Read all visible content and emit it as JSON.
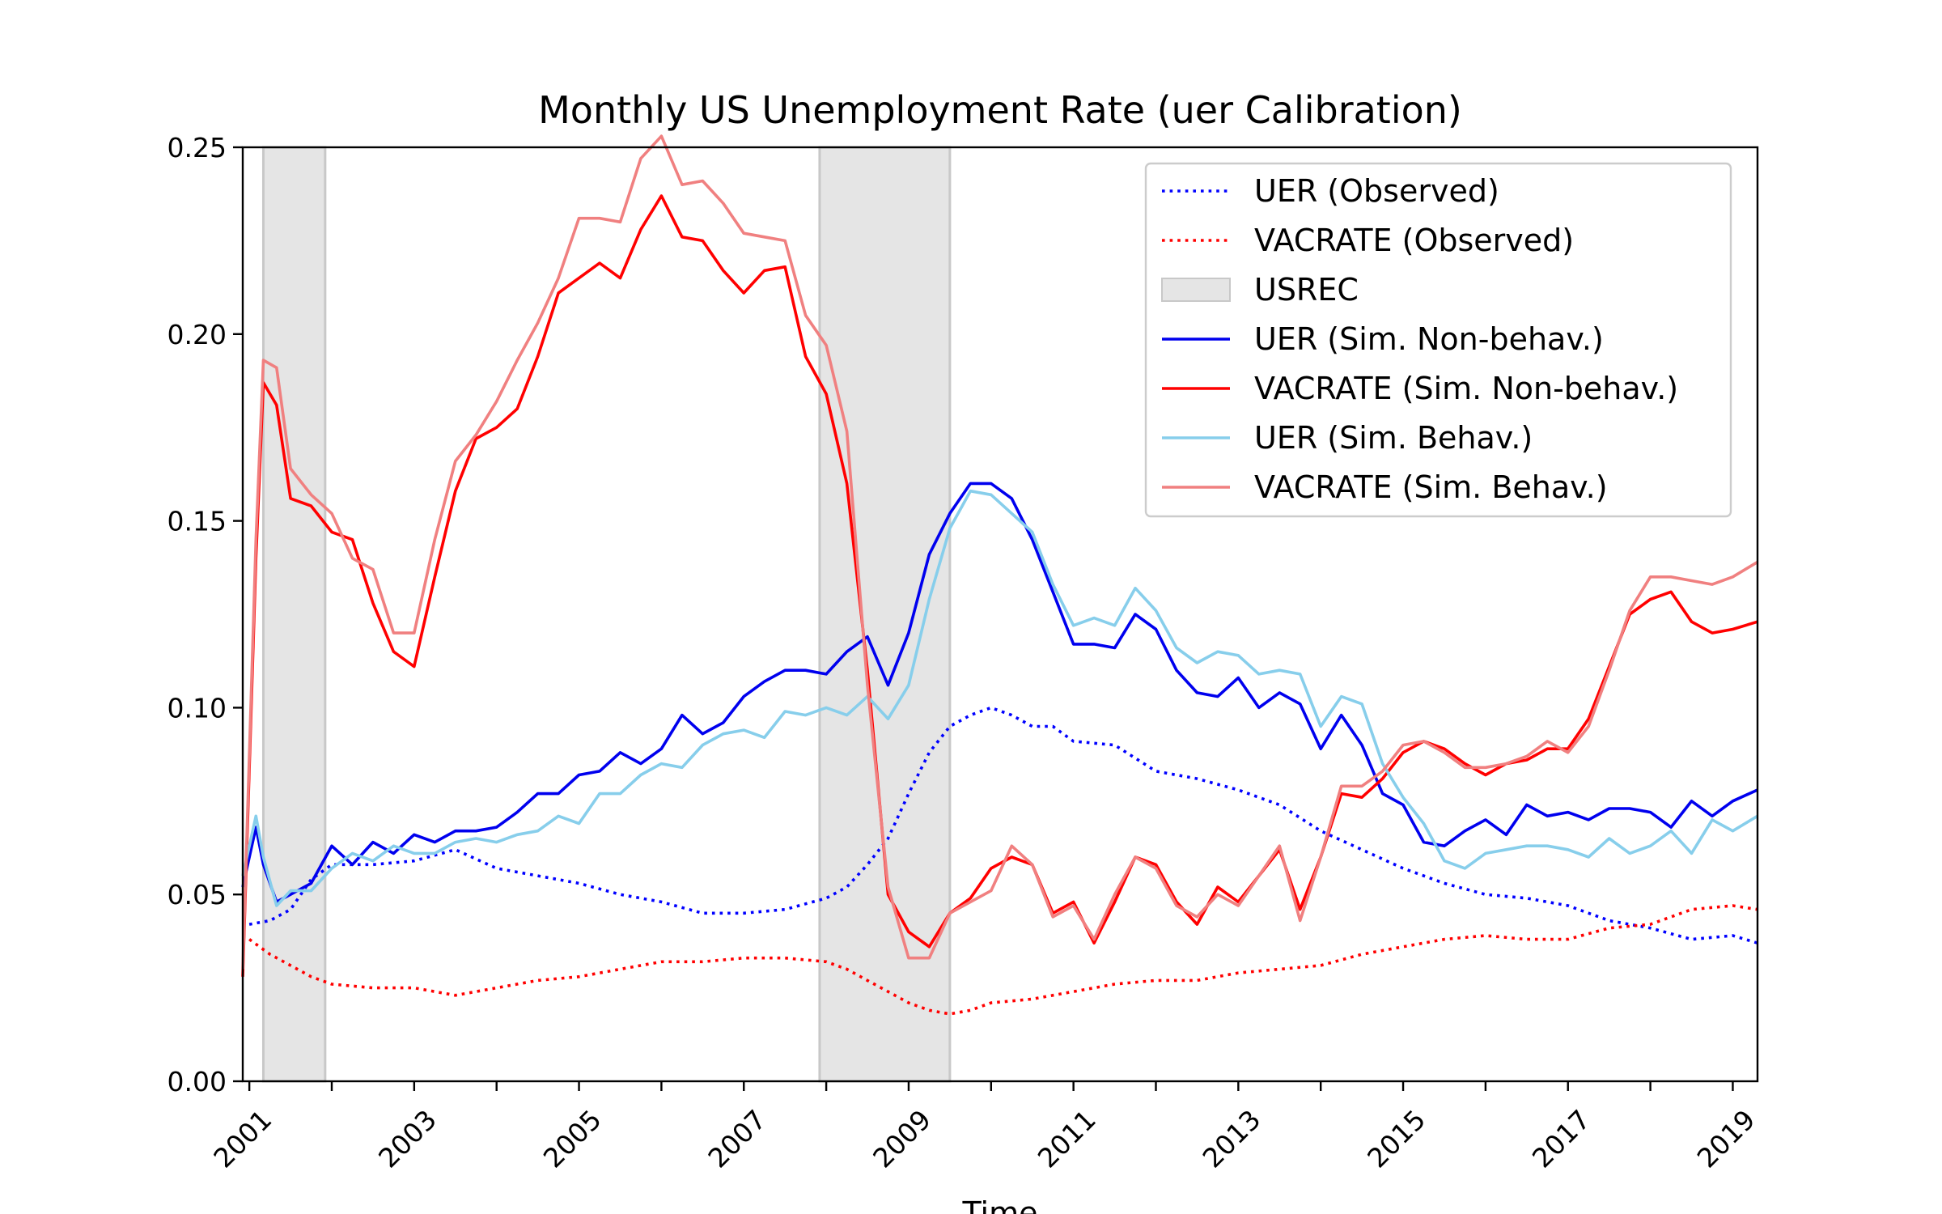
{
  "chart_data": {
    "type": "line",
    "title": "Monthly US Unemployment Rate (uer Calibration)",
    "xlabel": "Time",
    "ylabel": "",
    "xlim": [
      2000.92,
      2019.3
    ],
    "ylim": [
      0,
      0.25
    ],
    "x_ticks": [
      2001,
      2002,
      2003,
      2004,
      2005,
      2006,
      2007,
      2008,
      2009,
      2010,
      2011,
      2012,
      2013,
      2014,
      2015,
      2016,
      2017,
      2018,
      2019
    ],
    "x_tick_labels": [
      "2001",
      "",
      "2003",
      "",
      "2005",
      "",
      "2007",
      "",
      "2009",
      "",
      "2011",
      "",
      "2013",
      "",
      "2015",
      "",
      "2017",
      "",
      "2019"
    ],
    "y_ticks": [
      0.0,
      0.05,
      0.1,
      0.15,
      0.2,
      0.25
    ],
    "y_tick_labels": [
      "0.00",
      "0.05",
      "0.10",
      "0.15",
      "0.20",
      "0.25"
    ],
    "legend_position": "top-right",
    "grid": false,
    "recessions": [
      {
        "start": 2001.17,
        "end": 2001.92
      },
      {
        "start": 2007.92,
        "end": 2009.5
      }
    ],
    "recession_label": "USREC",
    "recession_color": "#e5e5e5",
    "series": [
      {
        "name": "UER (Observed)",
        "color": "#0000ff",
        "style": "dotted",
        "x": [
          2001.0,
          2001.25,
          2001.5,
          2001.75,
          2002.0,
          2002.5,
          2003.0,
          2003.5,
          2004.0,
          2004.5,
          2005.0,
          2005.5,
          2006.0,
          2006.5,
          2007.0,
          2007.5,
          2008.0,
          2008.25,
          2008.5,
          2008.75,
          2009.0,
          2009.25,
          2009.5,
          2009.75,
          2010.0,
          2010.25,
          2010.5,
          2010.75,
          2011.0,
          2011.5,
          2012.0,
          2012.5,
          2013.0,
          2013.5,
          2014.0,
          2014.5,
          2015.0,
          2015.5,
          2016.0,
          2016.5,
          2017.0,
          2017.5,
          2018.0,
          2018.5,
          2019.0,
          2019.3
        ],
        "values": [
          0.042,
          0.043,
          0.046,
          0.054,
          0.058,
          0.058,
          0.059,
          0.062,
          0.057,
          0.055,
          0.053,
          0.05,
          0.048,
          0.045,
          0.045,
          0.046,
          0.049,
          0.052,
          0.058,
          0.065,
          0.077,
          0.088,
          0.095,
          0.098,
          0.1,
          0.098,
          0.095,
          0.095,
          0.091,
          0.09,
          0.083,
          0.081,
          0.078,
          0.074,
          0.067,
          0.062,
          0.057,
          0.053,
          0.05,
          0.049,
          0.047,
          0.043,
          0.041,
          0.038,
          0.039,
          0.037
        ]
      },
      {
        "name": "VACRATE (Observed)",
        "color": "#ff0000",
        "style": "dotted",
        "x": [
          2001.0,
          2001.25,
          2001.5,
          2001.75,
          2002.0,
          2002.5,
          2003.0,
          2003.5,
          2004.0,
          2004.5,
          2005.0,
          2005.5,
          2006.0,
          2006.5,
          2007.0,
          2007.5,
          2008.0,
          2008.25,
          2008.5,
          2008.75,
          2009.0,
          2009.25,
          2009.5,
          2009.75,
          2010.0,
          2010.5,
          2011.0,
          2011.5,
          2012.0,
          2012.5,
          2013.0,
          2013.5,
          2014.0,
          2014.5,
          2015.0,
          2015.5,
          2016.0,
          2016.5,
          2017.0,
          2017.5,
          2018.0,
          2018.5,
          2019.0,
          2019.3
        ],
        "values": [
          0.038,
          0.034,
          0.031,
          0.028,
          0.026,
          0.025,
          0.025,
          0.023,
          0.025,
          0.027,
          0.028,
          0.03,
          0.032,
          0.032,
          0.033,
          0.033,
          0.032,
          0.03,
          0.027,
          0.024,
          0.021,
          0.019,
          0.018,
          0.019,
          0.021,
          0.022,
          0.024,
          0.026,
          0.027,
          0.027,
          0.029,
          0.03,
          0.031,
          0.034,
          0.036,
          0.038,
          0.039,
          0.038,
          0.038,
          0.041,
          0.042,
          0.046,
          0.047,
          0.046
        ]
      },
      {
        "name": "UER (Sim. Non-behav.)",
        "color": "#0000ee",
        "style": "solid",
        "x": [
          2000.92,
          2001.08,
          2001.17,
          2001.33,
          2001.5,
          2001.75,
          2002.0,
          2002.25,
          2002.5,
          2002.75,
          2003.0,
          2003.25,
          2003.5,
          2003.75,
          2004.0,
          2004.25,
          2004.5,
          2004.75,
          2005.0,
          2005.25,
          2005.5,
          2005.75,
          2006.0,
          2006.25,
          2006.5,
          2006.75,
          2007.0,
          2007.25,
          2007.5,
          2007.75,
          2008.0,
          2008.25,
          2008.5,
          2008.75,
          2009.0,
          2009.25,
          2009.5,
          2009.75,
          2010.0,
          2010.25,
          2010.5,
          2010.75,
          2011.0,
          2011.25,
          2011.5,
          2011.75,
          2012.0,
          2012.25,
          2012.5,
          2012.75,
          2013.0,
          2013.25,
          2013.5,
          2013.75,
          2014.0,
          2014.25,
          2014.5,
          2014.75,
          2015.0,
          2015.25,
          2015.5,
          2015.75,
          2016.0,
          2016.25,
          2016.5,
          2016.75,
          2017.0,
          2017.25,
          2017.5,
          2017.75,
          2018.0,
          2018.25,
          2018.5,
          2018.75,
          2019.0,
          2019.3
        ],
        "values": [
          0.052,
          0.068,
          0.058,
          0.048,
          0.05,
          0.053,
          0.063,
          0.058,
          0.064,
          0.061,
          0.066,
          0.064,
          0.067,
          0.067,
          0.068,
          0.072,
          0.077,
          0.077,
          0.082,
          0.083,
          0.088,
          0.085,
          0.089,
          0.098,
          0.093,
          0.096,
          0.103,
          0.107,
          0.11,
          0.11,
          0.109,
          0.115,
          0.119,
          0.106,
          0.12,
          0.141,
          0.152,
          0.16,
          0.16,
          0.156,
          0.145,
          0.131,
          0.117,
          0.117,
          0.116,
          0.125,
          0.121,
          0.11,
          0.104,
          0.103,
          0.108,
          0.1,
          0.104,
          0.101,
          0.089,
          0.098,
          0.09,
          0.077,
          0.074,
          0.064,
          0.063,
          0.067,
          0.07,
          0.066,
          0.074,
          0.071,
          0.072,
          0.07,
          0.073,
          0.073,
          0.072,
          0.068,
          0.075,
          0.071,
          0.075,
          0.078
        ]
      },
      {
        "name": "VACRATE (Sim. Non-behav.)",
        "color": "#ff0000",
        "style": "solid",
        "x": [
          2000.92,
          2001.08,
          2001.17,
          2001.33,
          2001.5,
          2001.75,
          2002.0,
          2002.25,
          2002.5,
          2002.75,
          2003.0,
          2003.25,
          2003.5,
          2003.75,
          2004.0,
          2004.25,
          2004.5,
          2004.75,
          2005.0,
          2005.25,
          2005.5,
          2005.75,
          2006.0,
          2006.25,
          2006.5,
          2006.75,
          2007.0,
          2007.25,
          2007.5,
          2007.75,
          2008.0,
          2008.25,
          2008.5,
          2008.75,
          2009.0,
          2009.25,
          2009.5,
          2009.75,
          2010.0,
          2010.25,
          2010.5,
          2010.75,
          2011.0,
          2011.25,
          2011.5,
          2011.75,
          2012.0,
          2012.25,
          2012.5,
          2012.75,
          2013.0,
          2013.25,
          2013.5,
          2013.75,
          2014.0,
          2014.25,
          2014.5,
          2014.75,
          2015.0,
          2015.25,
          2015.5,
          2015.75,
          2016.0,
          2016.25,
          2016.5,
          2016.75,
          2017.0,
          2017.25,
          2017.5,
          2017.75,
          2018.0,
          2018.25,
          2018.5,
          2018.75,
          2019.0,
          2019.3
        ],
        "values": [
          0.028,
          0.14,
          0.187,
          0.181,
          0.156,
          0.154,
          0.147,
          0.145,
          0.128,
          0.115,
          0.111,
          0.135,
          0.158,
          0.172,
          0.175,
          0.18,
          0.194,
          0.211,
          0.215,
          0.219,
          0.215,
          0.228,
          0.237,
          0.226,
          0.225,
          0.217,
          0.211,
          0.217,
          0.218,
          0.194,
          0.184,
          0.16,
          0.11,
          0.05,
          0.04,
          0.036,
          0.045,
          0.049,
          0.057,
          0.06,
          0.058,
          0.045,
          0.048,
          0.037,
          0.048,
          0.06,
          0.058,
          0.048,
          0.042,
          0.052,
          0.048,
          0.055,
          0.062,
          0.046,
          0.06,
          0.077,
          0.076,
          0.081,
          0.088,
          0.091,
          0.089,
          0.085,
          0.082,
          0.085,
          0.086,
          0.089,
          0.089,
          0.097,
          0.111,
          0.125,
          0.129,
          0.131,
          0.123,
          0.12,
          0.121,
          0.123
        ]
      },
      {
        "name": "UER (Sim. Behav.)",
        "color": "#87ceeb",
        "style": "solid",
        "x": [
          2000.92,
          2001.08,
          2001.17,
          2001.33,
          2001.5,
          2001.75,
          2002.0,
          2002.25,
          2002.5,
          2002.75,
          2003.0,
          2003.25,
          2003.5,
          2003.75,
          2004.0,
          2004.25,
          2004.5,
          2004.75,
          2005.0,
          2005.25,
          2005.5,
          2005.75,
          2006.0,
          2006.25,
          2006.5,
          2006.75,
          2007.0,
          2007.25,
          2007.5,
          2007.75,
          2008.0,
          2008.25,
          2008.5,
          2008.75,
          2009.0,
          2009.25,
          2009.5,
          2009.75,
          2010.0,
          2010.25,
          2010.5,
          2010.75,
          2011.0,
          2011.25,
          2011.5,
          2011.75,
          2012.0,
          2012.25,
          2012.5,
          2012.75,
          2013.0,
          2013.25,
          2013.5,
          2013.75,
          2014.0,
          2014.25,
          2014.5,
          2014.75,
          2015.0,
          2015.25,
          2015.5,
          2015.75,
          2016.0,
          2016.25,
          2016.5,
          2016.75,
          2017.0,
          2017.25,
          2017.5,
          2017.75,
          2018.0,
          2018.25,
          2018.5,
          2018.75,
          2019.0,
          2019.3
        ],
        "values": [
          0.055,
          0.071,
          0.06,
          0.047,
          0.051,
          0.051,
          0.057,
          0.061,
          0.059,
          0.063,
          0.061,
          0.061,
          0.064,
          0.065,
          0.064,
          0.066,
          0.067,
          0.071,
          0.069,
          0.077,
          0.077,
          0.082,
          0.085,
          0.084,
          0.09,
          0.093,
          0.094,
          0.092,
          0.099,
          0.098,
          0.1,
          0.098,
          0.103,
          0.097,
          0.106,
          0.129,
          0.148,
          0.158,
          0.157,
          0.152,
          0.147,
          0.133,
          0.122,
          0.124,
          0.122,
          0.132,
          0.126,
          0.116,
          0.112,
          0.115,
          0.114,
          0.109,
          0.11,
          0.109,
          0.095,
          0.103,
          0.101,
          0.085,
          0.076,
          0.069,
          0.059,
          0.057,
          0.061,
          0.062,
          0.063,
          0.063,
          0.062,
          0.06,
          0.065,
          0.061,
          0.063,
          0.067,
          0.061,
          0.07,
          0.067,
          0.071
        ]
      },
      {
        "name": "VACRATE (Sim. Behav.)",
        "color": "#f08080",
        "style": "solid",
        "x": [
          2000.92,
          2001.08,
          2001.17,
          2001.33,
          2001.5,
          2001.75,
          2002.0,
          2002.25,
          2002.5,
          2002.75,
          2003.0,
          2003.25,
          2003.5,
          2003.75,
          2004.0,
          2004.25,
          2004.5,
          2004.75,
          2005.0,
          2005.25,
          2005.5,
          2005.75,
          2006.0,
          2006.25,
          2006.5,
          2006.75,
          2007.0,
          2007.25,
          2007.5,
          2007.75,
          2008.0,
          2008.25,
          2008.5,
          2008.75,
          2009.0,
          2009.25,
          2009.5,
          2009.75,
          2010.0,
          2010.25,
          2010.5,
          2010.75,
          2011.0,
          2011.25,
          2011.5,
          2011.75,
          2012.0,
          2012.25,
          2012.5,
          2012.75,
          2013.0,
          2013.25,
          2013.5,
          2013.75,
          2014.0,
          2014.25,
          2014.5,
          2014.75,
          2015.0,
          2015.25,
          2015.5,
          2015.75,
          2016.0,
          2016.25,
          2016.5,
          2016.75,
          2017.0,
          2017.25,
          2017.5,
          2017.75,
          2018.0,
          2018.25,
          2018.5,
          2018.75,
          2019.0,
          2019.3
        ],
        "values": [
          0.03,
          0.145,
          0.193,
          0.191,
          0.164,
          0.157,
          0.152,
          0.14,
          0.137,
          0.12,
          0.12,
          0.145,
          0.166,
          0.173,
          0.182,
          0.193,
          0.203,
          0.215,
          0.231,
          0.231,
          0.23,
          0.247,
          0.253,
          0.24,
          0.241,
          0.235,
          0.227,
          0.226,
          0.225,
          0.205,
          0.197,
          0.174,
          0.106,
          0.052,
          0.033,
          0.033,
          0.045,
          0.048,
          0.051,
          0.063,
          0.058,
          0.044,
          0.047,
          0.038,
          0.05,
          0.06,
          0.057,
          0.047,
          0.044,
          0.05,
          0.047,
          0.055,
          0.063,
          0.043,
          0.06,
          0.079,
          0.079,
          0.083,
          0.09,
          0.091,
          0.088,
          0.084,
          0.084,
          0.085,
          0.087,
          0.091,
          0.088,
          0.095,
          0.11,
          0.126,
          0.135,
          0.135,
          0.134,
          0.133,
          0.135,
          0.139
        ]
      }
    ]
  }
}
